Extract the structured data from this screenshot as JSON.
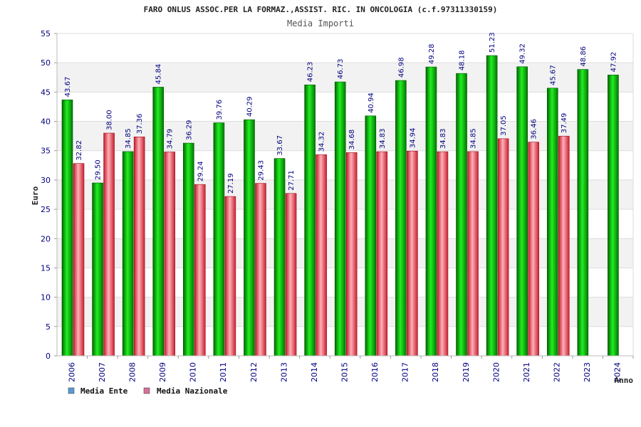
{
  "chart_data": {
    "type": "bar",
    "title": "FARO ONLUS ASSOC.PER LA FORMAZ.,ASSIST. RIC. IN ONCOLOGIA (c.f.97311330159)",
    "subtitle": "Media Importi",
    "xlabel": "Anno",
    "ylabel": "Euro",
    "ylim": [
      0,
      55
    ],
    "yticks": [
      0,
      5,
      10,
      15,
      20,
      25,
      30,
      35,
      40,
      45,
      50,
      55
    ],
    "grid": true,
    "legend_position": "bottom-left",
    "categories": [
      "2006",
      "2007",
      "2008",
      "2009",
      "2010",
      "2011",
      "2012",
      "2013",
      "2014",
      "2015",
      "2016",
      "2017",
      "2018",
      "2019",
      "2020",
      "2021",
      "2022",
      "2023",
      "2024"
    ],
    "series": [
      {
        "name": "Media Ente",
        "color": "#00aa00",
        "legend_color": "#5b9bd5",
        "values": [
          43.67,
          29.5,
          34.85,
          45.84,
          36.29,
          39.76,
          40.29,
          33.67,
          46.23,
          46.73,
          40.94,
          46.98,
          49.28,
          48.18,
          51.23,
          49.32,
          45.67,
          48.86,
          47.92
        ],
        "labels": [
          "43.67",
          "29.50",
          "34.85",
          "45.84",
          "36.29",
          "39.76",
          "40.29",
          "33.67",
          "46.23",
          "46.73",
          "40.94",
          "46.98",
          "49.28",
          "48.18",
          "51.23",
          "49.32",
          "45.67",
          "48.86",
          "47.92"
        ]
      },
      {
        "name": "Media Nazionale",
        "color": "#e8404a",
        "legend_color": "#d9709a",
        "values": [
          32.82,
          38.0,
          37.36,
          34.79,
          29.24,
          27.19,
          29.43,
          27.71,
          34.32,
          34.68,
          34.83,
          34.94,
          34.83,
          34.85,
          37.05,
          36.46,
          37.49,
          null,
          null
        ],
        "labels": [
          "32.82",
          "38.00",
          "37.36",
          "34.79",
          "29.24",
          "27.19",
          "29.43",
          "27.71",
          "34.32",
          "34.68",
          "34.83",
          "34.94",
          "34.83",
          "34.85",
          "37.05",
          "36.46",
          "37.49",
          "",
          ""
        ]
      }
    ]
  }
}
